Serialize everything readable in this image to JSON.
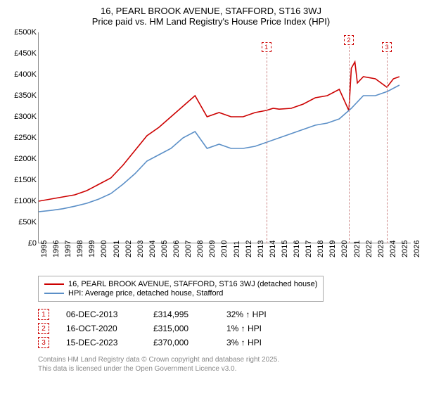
{
  "title_line1": "16, PEARL BROOK AVENUE, STAFFORD, ST16 3WJ",
  "title_line2": "Price paid vs. HM Land Registry's House Price Index (HPI)",
  "chart": {
    "type": "line",
    "background_color": "#ffffff",
    "border_color": "#888888",
    "ylim": [
      0,
      500000
    ],
    "ytick_step": 50000,
    "y_ticks": [
      "£0",
      "£50K",
      "£100K",
      "£150K",
      "£200K",
      "£250K",
      "£300K",
      "£350K",
      "£400K",
      "£450K",
      "£500K"
    ],
    "y_tick_values": [
      0,
      50000,
      100000,
      150000,
      200000,
      250000,
      300000,
      350000,
      400000,
      450000,
      500000
    ],
    "xlim": [
      1995,
      2026
    ],
    "x_ticks": [
      "1995",
      "1996",
      "1997",
      "1998",
      "1999",
      "2000",
      "2001",
      "2002",
      "2003",
      "2004",
      "2005",
      "2006",
      "2007",
      "2008",
      "2009",
      "2010",
      "2011",
      "2012",
      "2013",
      "2014",
      "2015",
      "2016",
      "2017",
      "2018",
      "2019",
      "2020",
      "2021",
      "2022",
      "2023",
      "2024",
      "2025",
      "2026"
    ],
    "x_tick_values": [
      1995,
      1996,
      1997,
      1998,
      1999,
      2000,
      2001,
      2002,
      2003,
      2004,
      2005,
      2006,
      2007,
      2008,
      2009,
      2010,
      2011,
      2012,
      2013,
      2014,
      2015,
      2016,
      2017,
      2018,
      2019,
      2020,
      2021,
      2022,
      2023,
      2024,
      2025,
      2026
    ],
    "label_fontsize": 11,
    "series": [
      {
        "name": "price_paid",
        "color": "#cc0000",
        "line_width": 1.6,
        "points": [
          [
            1995,
            100000
          ],
          [
            1996,
            105000
          ],
          [
            1997,
            110000
          ],
          [
            1998,
            115000
          ],
          [
            1999,
            125000
          ],
          [
            2000,
            140000
          ],
          [
            2001,
            155000
          ],
          [
            2002,
            185000
          ],
          [
            2003,
            220000
          ],
          [
            2004,
            255000
          ],
          [
            2005,
            275000
          ],
          [
            2006,
            300000
          ],
          [
            2007,
            325000
          ],
          [
            2008,
            350000
          ],
          [
            2009,
            300000
          ],
          [
            2010,
            310000
          ],
          [
            2011,
            300000
          ],
          [
            2012,
            300000
          ],
          [
            2013,
            310000
          ],
          [
            2013.93,
            314995
          ],
          [
            2014.5,
            320000
          ],
          [
            2015,
            318000
          ],
          [
            2016,
            320000
          ],
          [
            2017,
            330000
          ],
          [
            2018,
            345000
          ],
          [
            2019,
            350000
          ],
          [
            2020,
            365000
          ],
          [
            2020.79,
            315000
          ],
          [
            2020.8,
            315000
          ],
          [
            2021,
            415000
          ],
          [
            2021.3,
            430000
          ],
          [
            2021.5,
            380000
          ],
          [
            2022,
            395000
          ],
          [
            2023,
            390000
          ],
          [
            2023.96,
            370000
          ],
          [
            2024.5,
            390000
          ],
          [
            2025,
            395000
          ]
        ]
      },
      {
        "name": "hpi",
        "color": "#5b8fc7",
        "line_width": 1.6,
        "points": [
          [
            1995,
            75000
          ],
          [
            1996,
            78000
          ],
          [
            1997,
            82000
          ],
          [
            1998,
            88000
          ],
          [
            1999,
            95000
          ],
          [
            2000,
            105000
          ],
          [
            2001,
            118000
          ],
          [
            2002,
            140000
          ],
          [
            2003,
            165000
          ],
          [
            2004,
            195000
          ],
          [
            2005,
            210000
          ],
          [
            2006,
            225000
          ],
          [
            2007,
            250000
          ],
          [
            2008,
            265000
          ],
          [
            2009,
            225000
          ],
          [
            2010,
            235000
          ],
          [
            2011,
            225000
          ],
          [
            2012,
            225000
          ],
          [
            2013,
            230000
          ],
          [
            2014,
            240000
          ],
          [
            2015,
            250000
          ],
          [
            2016,
            260000
          ],
          [
            2017,
            270000
          ],
          [
            2018,
            280000
          ],
          [
            2019,
            285000
          ],
          [
            2020,
            295000
          ],
          [
            2021,
            320000
          ],
          [
            2022,
            350000
          ],
          [
            2023,
            350000
          ],
          [
            2024,
            360000
          ],
          [
            2025,
            375000
          ]
        ]
      }
    ],
    "markers": [
      {
        "n": "1",
        "year": 2013.93,
        "top_offset": 14
      },
      {
        "n": "2",
        "year": 2020.79,
        "top_offset": 4
      },
      {
        "n": "3",
        "year": 2023.96,
        "top_offset": 14
      }
    ],
    "marker_border_color": "#cc0000",
    "marker_line_color": "#cc8888"
  },
  "legend": {
    "series1_label": "16, PEARL BROOK AVENUE, STAFFORD, ST16 3WJ (detached house)",
    "series1_color": "#cc0000",
    "series2_label": "HPI: Average price, detached house, Stafford",
    "series2_color": "#5b8fc7"
  },
  "sales": [
    {
      "n": "1",
      "date": "06-DEC-2013",
      "price": "£314,995",
      "change": "32% ↑ HPI"
    },
    {
      "n": "2",
      "date": "16-OCT-2020",
      "price": "£315,000",
      "change": "1% ↑ HPI"
    },
    {
      "n": "3",
      "date": "15-DEC-2023",
      "price": "£370,000",
      "change": "3% ↑ HPI"
    }
  ],
  "footer_line1": "Contains HM Land Registry data © Crown copyright and database right 2025.",
  "footer_line2": "This data is licensed under the Open Government Licence v3.0.",
  "footer_color": "#888888"
}
